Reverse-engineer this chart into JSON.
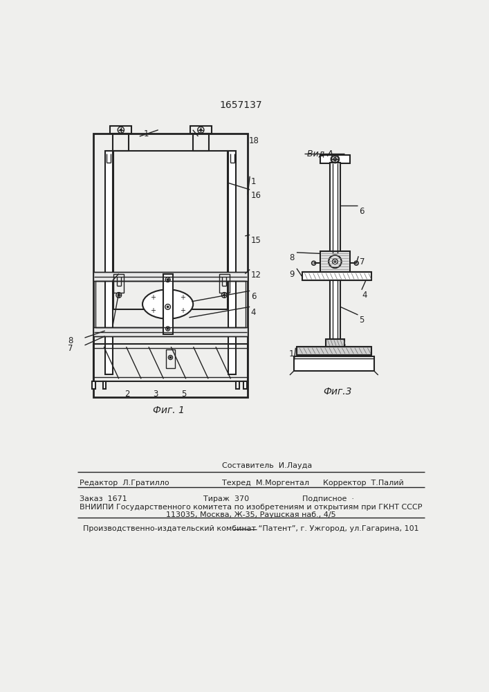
{
  "patent_number": "1657137",
  "fig1_label": "Фиг. 1",
  "fig3_label": "Фиг.3",
  "vid_a_label": "Вид А",
  "footer_line1_col1": "Редактор  Л.Гратилло",
  "footer_line1_col2_top": "Составитель  И.Лауда",
  "footer_line1_col2_bot": "Техред  М.Моргентал",
  "footer_line1_col3": "Корректор  Т.Палий",
  "footer_line2_col1": "Заказ  1671",
  "footer_line2_col2": "Тираж  370",
  "footer_line2_col3": "Подписное  ·",
  "footer_line3": "ВНИИПИ Государственного комитета по изобретениям и открытиям при ГКНТ СССР",
  "footer_line4": "113035, Москва, Ж-35, Раушская наб., 4/5",
  "footer_line5": "Производственно-издательский комбинат “Патент”, г. Ужгород, ул.Гагарина, 101",
  "bg_color": "#efefed",
  "line_color": "#222222"
}
